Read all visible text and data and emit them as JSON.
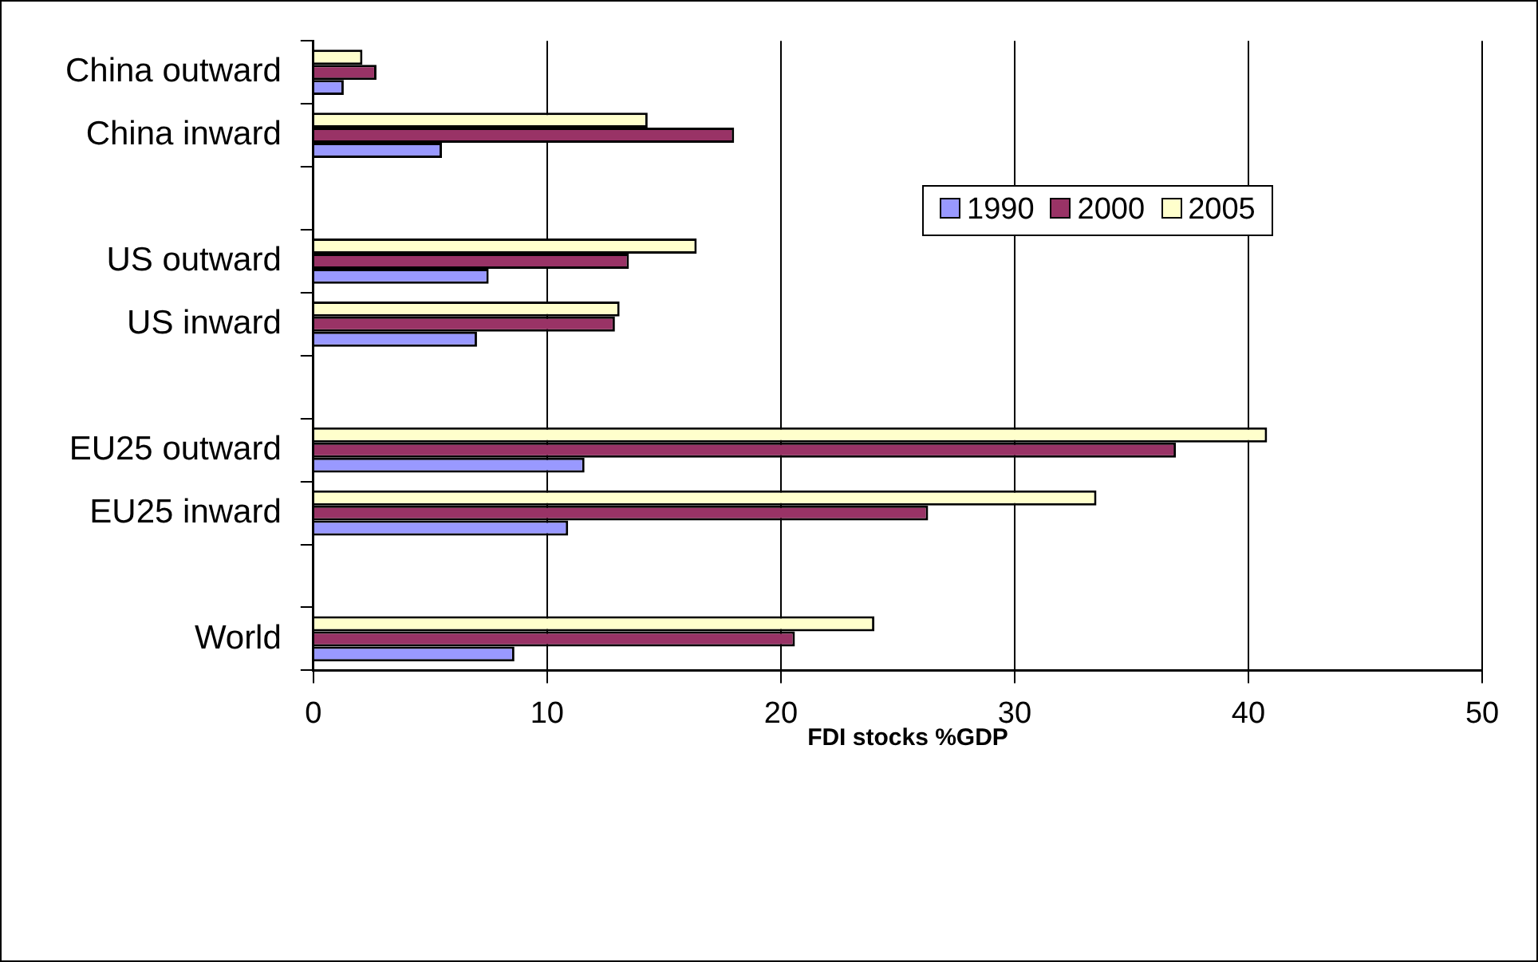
{
  "chart_data": {
    "type": "bar",
    "orientation": "horizontal",
    "xlabel": "FDI stocks %GDP",
    "categories": [
      "China outward",
      "China inward",
      null,
      "US outward",
      "US inward",
      null,
      "EU25 outward",
      "EU25 inward",
      null,
      "World"
    ],
    "series": [
      {
        "name": "1990",
        "color": "#9999ff",
        "values": [
          1.3,
          5.5,
          null,
          7.5,
          7.0,
          null,
          11.6,
          10.9,
          null,
          8.6
        ]
      },
      {
        "name": "2000",
        "color": "#993366",
        "values": [
          2.7,
          18.0,
          null,
          13.5,
          12.9,
          null,
          36.9,
          26.3,
          null,
          20.6
        ]
      },
      {
        "name": "2005",
        "color": "#ffffcc",
        "values": [
          2.1,
          14.3,
          null,
          16.4,
          13.1,
          null,
          40.8,
          33.5,
          null,
          24.0
        ]
      }
    ],
    "xlim": [
      0,
      50
    ],
    "xticks": [
      0,
      10,
      20,
      30,
      40,
      50
    ],
    "grid": "x",
    "legend": "top right"
  }
}
